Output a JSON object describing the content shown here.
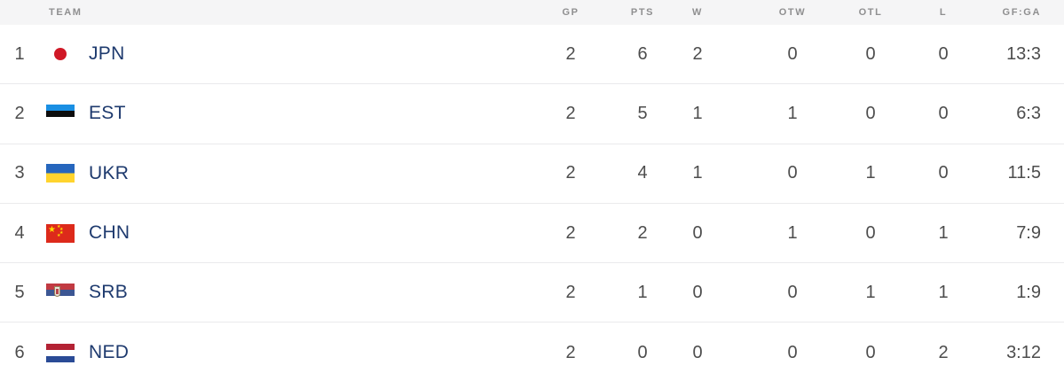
{
  "table": {
    "header": {
      "team": "TEAM",
      "gp": "GP",
      "pts": "PTS",
      "w": "W",
      "otw": "OTW",
      "otl": "OTL",
      "l": "L",
      "gfga": "GF:GA"
    },
    "rows": [
      {
        "rank": "1",
        "team": "JPN",
        "flag": "japan-flag",
        "gp": "2",
        "pts": "6",
        "w": "2",
        "otw": "0",
        "otl": "0",
        "l": "0",
        "gfga": "13:3"
      },
      {
        "rank": "2",
        "team": "EST",
        "flag": "estonia-flag",
        "gp": "2",
        "pts": "5",
        "w": "1",
        "otw": "1",
        "otl": "0",
        "l": "0",
        "gfga": "6:3"
      },
      {
        "rank": "3",
        "team": "UKR",
        "flag": "ukraine-flag",
        "gp": "2",
        "pts": "4",
        "w": "1",
        "otw": "0",
        "otl": "1",
        "l": "0",
        "gfga": "11:5"
      },
      {
        "rank": "4",
        "team": "CHN",
        "flag": "china-flag",
        "gp": "2",
        "pts": "2",
        "w": "0",
        "otw": "1",
        "otl": "0",
        "l": "1",
        "gfga": "7:9"
      },
      {
        "rank": "5",
        "team": "SRB",
        "flag": "serbia-flag",
        "gp": "2",
        "pts": "1",
        "w": "0",
        "otw": "0",
        "otl": "1",
        "l": "1",
        "gfga": "1:9"
      },
      {
        "rank": "6",
        "team": "NED",
        "flag": "netherlands-flag",
        "gp": "2",
        "pts": "0",
        "w": "0",
        "otw": "0",
        "otl": "0",
        "l": "2",
        "gfga": "3:12"
      }
    ]
  },
  "icons": {
    "star": "★"
  },
  "colors": {
    "header_bg": "#f5f5f6",
    "header_text": "#8f8f90",
    "value_text": "#4d4d4d",
    "team_link": "#1e3a6e",
    "divider": "#eaeaec",
    "row_bg": "#ffffff"
  }
}
